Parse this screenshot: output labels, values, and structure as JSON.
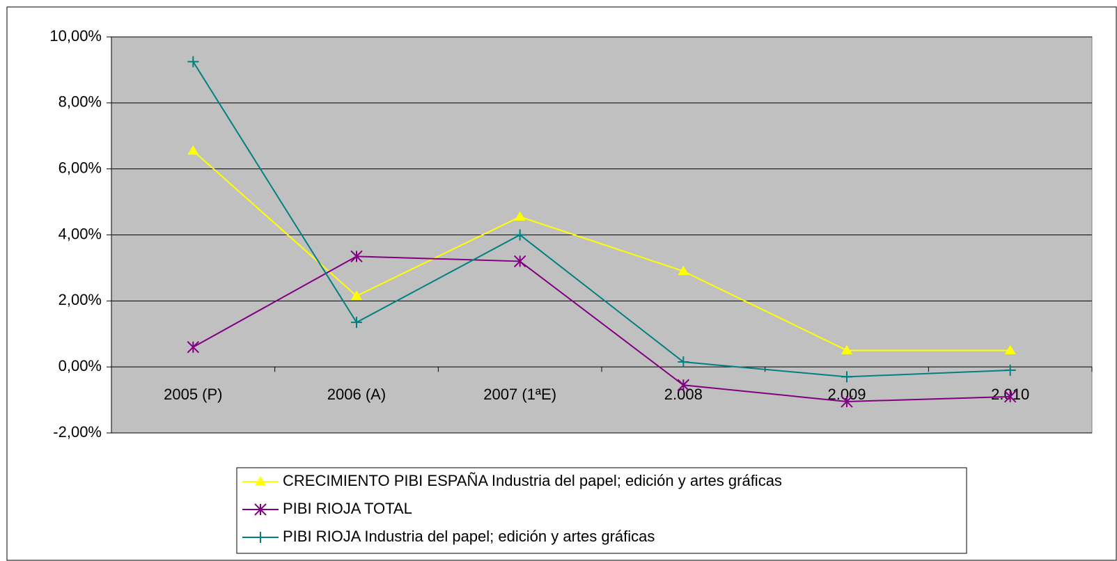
{
  "chart_data": {
    "type": "line",
    "categories": [
      "2005 (P)",
      "2006 (A)",
      "2007 (1ªE)",
      "2.008",
      "2.009",
      "2.010"
    ],
    "series": [
      {
        "name": "CRECIMIENTO PIBI ESPAÑA Industria del papel; edición y artes gráficas",
        "color": "#ffff00",
        "marker": "triangle",
        "values": [
          6.55,
          2.15,
          4.55,
          2.9,
          0.5,
          0.5
        ]
      },
      {
        "name": "PIBI RIOJA TOTAL",
        "color": "#800080",
        "marker": "asterisk",
        "values": [
          0.6,
          3.35,
          3.2,
          -0.55,
          -1.05,
          -0.9
        ]
      },
      {
        "name": "PIBI RIOJA Industria del papel; edición y artes gráficas",
        "color": "#008080",
        "marker": "plus",
        "values": [
          9.25,
          1.35,
          4.0,
          0.15,
          -0.3,
          -0.1
        ]
      }
    ],
    "ylim": [
      -2,
      10
    ],
    "yticks": [
      {
        "value": -2,
        "label": "-2,00%"
      },
      {
        "value": 0,
        "label": "0,00%"
      },
      {
        "value": 2,
        "label": "2,00%"
      },
      {
        "value": 4,
        "label": "4,00%"
      },
      {
        "value": 6,
        "label": "6,00%"
      },
      {
        "value": 8,
        "label": "8,00%"
      },
      {
        "value": 10,
        "label": "10,00%"
      }
    ],
    "grid": true,
    "legend": "bottom"
  }
}
